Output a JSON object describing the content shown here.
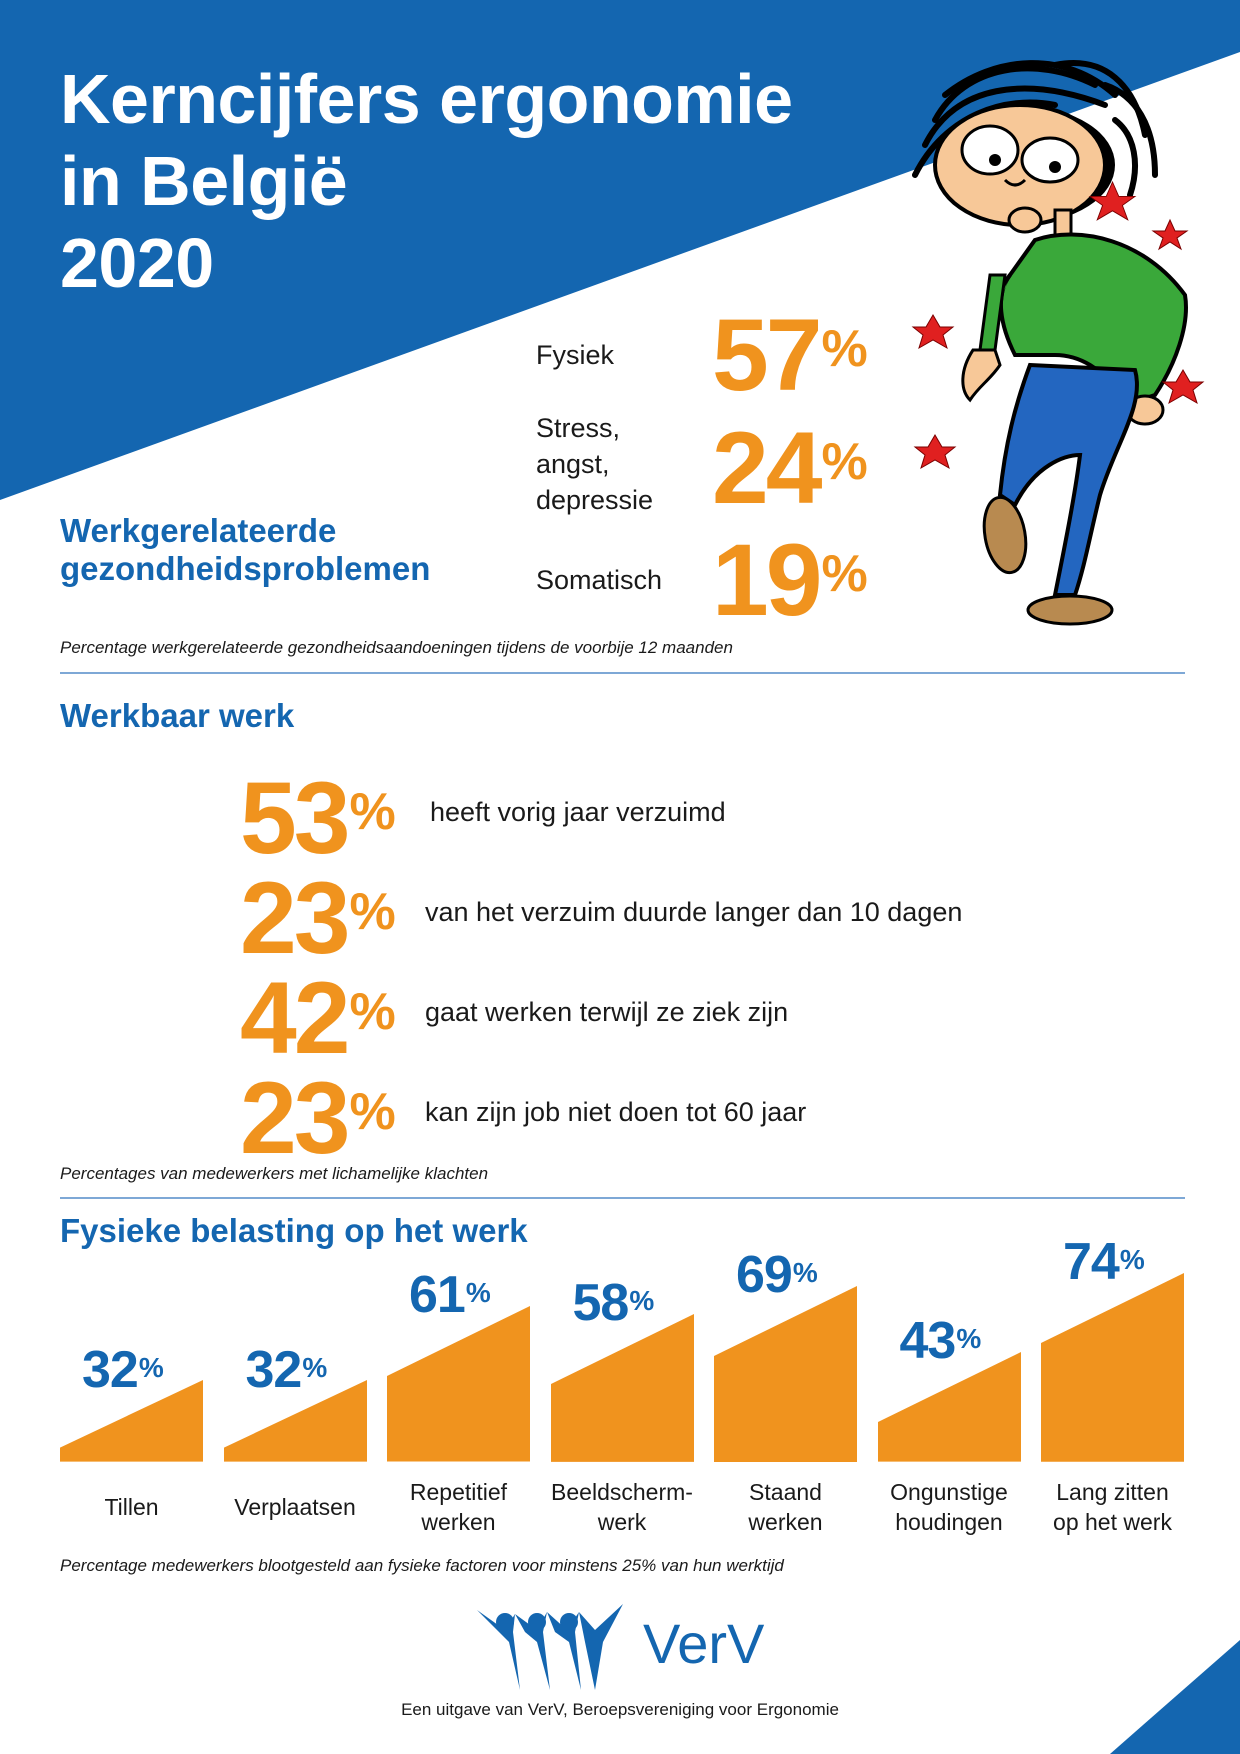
{
  "header": {
    "title": "Kerncijfers ergonomie\nin België\n2020"
  },
  "colors": {
    "brand_blue": "#1466b0",
    "accent_orange": "#f0931e",
    "divider": "#7ea8d6",
    "text": "#1a1a1a"
  },
  "health_problems": {
    "title_line1": "Werkgerelateerde",
    "title_line2": "gezondheidsproblemen",
    "items": [
      {
        "label": "Fysiek",
        "value": "57",
        "unit": "%"
      },
      {
        "label": "Stress,\nangst,\ndepressie",
        "value": "24",
        "unit": "%"
      },
      {
        "label": "Somatisch",
        "value": "19",
        "unit": "%"
      }
    ],
    "note": "Percentage werkgerelateerde gezondheidsaandoeningen tijdens de voorbije 12 maanden"
  },
  "werkbaar_werk": {
    "title": "Werkbaar werk",
    "items": [
      {
        "value": "53",
        "unit": "%",
        "text": "heeft vorig jaar verzuimd"
      },
      {
        "value": "23",
        "unit": "%",
        "text": "van het verzuim duurde langer dan 10 dagen"
      },
      {
        "value": "42",
        "unit": "%",
        "text": "gaat werken terwijl ze ziek zijn"
      },
      {
        "value": "23",
        "unit": "%",
        "text": "kan zijn job niet doen tot 60 jaar"
      }
    ],
    "note": "Percentages van medewerkers met lichamelijke klachten"
  },
  "fysieke_belasting": {
    "title": "Fysieke belasting op het werk",
    "note": "Percentage medewerkers blootgesteld aan fysieke factoren voor minstens 25% van hun werktijd"
  },
  "chart_data": {
    "type": "bar",
    "title": "Fysieke belasting op het werk",
    "subtitle": "Percentage medewerkers blootgesteld aan fysieke factoren voor minstens 25% van hun werktijd",
    "categories": [
      "Tillen",
      "Verplaatsen",
      "Repetitief werken",
      "Beeldschermwerk",
      "Staand werken",
      "Ongunstige houdingen",
      "Lang zitten op het werk"
    ],
    "category_labels": [
      "Tillen",
      "Verplaatsen",
      "Repetitief\nwerken",
      "Beeldscherm-\nwerk",
      "Staand\nwerken",
      "Ongunstige\nhoudingen",
      "Lang zitten\nop het werk"
    ],
    "values": [
      32,
      32,
      61,
      58,
      69,
      43,
      74
    ],
    "unit": "%",
    "xlabel": "",
    "ylabel": "",
    "ylim": [
      0,
      100
    ],
    "grid": false,
    "legend": "none",
    "bar_color": "#f0931e",
    "label_color": "#1466b0"
  },
  "logo": {
    "name": "VerV"
  },
  "footer": {
    "text": "Een uitgave van VerV, Beroepsvereniging voor Ergonomie"
  }
}
